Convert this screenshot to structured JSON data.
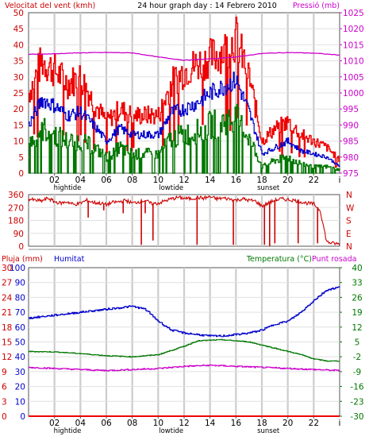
{
  "chart_data": [
    {
      "type": "line",
      "title": "24 hour graph day : 14 Febrero 2010",
      "left_axis_label": "Velocitat del vent (kmh)",
      "right_axis_label": "Pressió (mb)",
      "ylim": [
        0,
        50
      ],
      "yticks": [
        "0",
        "5",
        "10",
        "15",
        "20",
        "25",
        "30",
        "35",
        "40",
        "45",
        "50"
      ],
      "y2lim": [
        975,
        1025
      ],
      "y2ticks": [
        "975",
        "980",
        "985",
        "990",
        "995",
        "1000",
        "1005",
        "1010",
        "1015",
        "1020",
        "1025"
      ],
      "xticks": [
        "02",
        "04",
        "06",
        "08",
        "10",
        "12",
        "14",
        "16",
        "18",
        "20",
        "22"
      ],
      "x_annotations": [
        {
          "x": 3,
          "label": "hightide"
        },
        {
          "x": 11,
          "label": "lowtide"
        },
        {
          "x": 18.5,
          "label": "sunset"
        }
      ],
      "x_end_label": "i",
      "colors": {
        "gust": "#ee0000",
        "average": "#0000cc",
        "wind_low": "#007700",
        "pressure": "#cc00cc"
      },
      "series": [
        {
          "role": "gust",
          "axis": "left",
          "x": [
            0,
            1,
            2,
            3,
            4,
            5,
            6,
            7,
            8,
            9,
            10,
            11,
            12,
            13,
            14,
            15,
            16,
            17,
            18,
            19,
            20,
            21,
            22,
            23,
            24
          ],
          "values": [
            25,
            35,
            32,
            28,
            30,
            22,
            16,
            20,
            18,
            18,
            18,
            28,
            32,
            34,
            36,
            38,
            42,
            30,
            10,
            14,
            16,
            12,
            10,
            8,
            4
          ]
        },
        {
          "role": "average",
          "axis": "left",
          "x": [
            0,
            1,
            2,
            3,
            4,
            5,
            6,
            7,
            8,
            9,
            10,
            11,
            12,
            13,
            14,
            15,
            16,
            17,
            18,
            19,
            20,
            21,
            22,
            23,
            24
          ],
          "values": [
            15,
            23,
            21,
            18,
            19,
            15,
            10,
            14,
            12,
            12,
            12,
            19,
            20,
            22,
            25,
            27,
            29,
            19,
            6,
            8,
            10,
            7,
            6,
            5,
            2
          ]
        },
        {
          "role": "wind_low",
          "axis": "left",
          "x": [
            0,
            1,
            2,
            3,
            4,
            5,
            6,
            7,
            8,
            9,
            10,
            11,
            12,
            13,
            14,
            15,
            16,
            17,
            18,
            19,
            20,
            21,
            22,
            23,
            24
          ],
          "values": [
            9,
            14,
            12,
            10,
            10,
            8,
            5,
            8,
            6,
            6,
            6,
            11,
            12,
            13,
            15,
            16,
            17,
            11,
            2,
            4,
            5,
            3,
            2,
            2,
            1
          ]
        },
        {
          "role": "pressure",
          "axis": "right",
          "x": [
            0,
            2,
            4,
            6,
            8,
            10,
            12,
            14,
            16,
            18,
            20,
            22,
            24
          ],
          "values": [
            1012,
            1012.2,
            1012.5,
            1012.6,
            1012.5,
            1011.2,
            1010.2,
            1010.6,
            1011.2,
            1012.3,
            1012.6,
            1012.4,
            1011.8
          ]
        }
      ]
    },
    {
      "type": "scatter",
      "title": "",
      "ylim": [
        0,
        360
      ],
      "yticks": [
        "0",
        "90",
        "180",
        "270",
        "360"
      ],
      "y2ticks": [
        "N",
        "E",
        "S",
        "W",
        "N"
      ],
      "xticks": [],
      "series": [
        {
          "role": "direction",
          "color": "#cc0000",
          "x": [
            0,
            0.5,
            1,
            1.5,
            2,
            2.5,
            3,
            3.5,
            4,
            4.5,
            5,
            5.5,
            6,
            6.5,
            7,
            7.5,
            8,
            8.5,
            9,
            9.5,
            10,
            10.5,
            11,
            11.5,
            12,
            12.5,
            13,
            13.5,
            14,
            14.5,
            15,
            15.5,
            16,
            16.5,
            17,
            17.5,
            18,
            18.5,
            19,
            19.5,
            20,
            20.5,
            21,
            21.5,
            22,
            22.5,
            23,
            23.5,
            24
          ],
          "values": [
            330,
            320,
            315,
            335,
            310,
            300,
            310,
            290,
            300,
            320,
            305,
            300,
            290,
            305,
            310,
            320,
            300,
            310,
            320,
            295,
            300,
            315,
            330,
            340,
            335,
            330,
            340,
            335,
            345,
            330,
            335,
            330,
            320,
            330,
            320,
            315,
            280,
            300,
            320,
            330,
            325,
            320,
            310,
            300,
            295,
            250,
            30,
            20,
            15
          ]
        }
      ],
      "spikes": [
        {
          "x": 4.6,
          "value": 200
        },
        {
          "x": 5.8,
          "value": 250
        },
        {
          "x": 7.3,
          "value": 230
        },
        {
          "x": 8.7,
          "value": 10
        },
        {
          "x": 9.0,
          "value": 230
        },
        {
          "x": 9.6,
          "value": 40
        },
        {
          "x": 13.0,
          "value": 10
        },
        {
          "x": 15.8,
          "value": 10
        },
        {
          "x": 18.2,
          "value": 10
        },
        {
          "x": 18.6,
          "value": 0
        },
        {
          "x": 19.0,
          "value": 20
        },
        {
          "x": 20.8,
          "value": 20
        },
        {
          "x": 22.3,
          "value": 20
        }
      ]
    },
    {
      "type": "line",
      "title": "",
      "labels": {
        "left_outer": "Pluja (mm)",
        "left_inner": "Humitat",
        "right_inner": "Temperatura (°C)",
        "right_outer": "Punt rosada"
      },
      "rain_ticks": [
        "0",
        "3",
        "6",
        "9",
        "12",
        "15",
        "18",
        "21",
        "24",
        "27",
        "30"
      ],
      "humidity_ticks": [
        "0",
        "10",
        "20",
        "30",
        "40",
        "50",
        "60",
        "70",
        "80",
        "90",
        "100"
      ],
      "temp_ticks": [
        "-30",
        "-23",
        "-16",
        "-9",
        "-2",
        "5",
        "12",
        "19",
        "26",
        "33",
        "40"
      ],
      "ylim_humidity": [
        0,
        100
      ],
      "ylim_temperature": [
        -30,
        40
      ],
      "xticks": [
        "02",
        "04",
        "06",
        "08",
        "10",
        "12",
        "14",
        "16",
        "18",
        "20",
        "22"
      ],
      "x_annotations": [
        {
          "x": 3,
          "label": "hightide"
        },
        {
          "x": 11,
          "label": "lowtide"
        },
        {
          "x": 18.5,
          "label": "sunset"
        }
      ],
      "x_end_label": "i",
      "colors": {
        "humidity": "#0000cc",
        "temperature": "#007700",
        "dew_point": "#cc00cc",
        "rain": "#ee0000"
      },
      "series": [
        {
          "role": "humidity",
          "axis": "humidity",
          "x": [
            0,
            2,
            4,
            6,
            8,
            9,
            10,
            11,
            12,
            13,
            14,
            15,
            16,
            17,
            18,
            19,
            20,
            21,
            22,
            23,
            24
          ],
          "values": [
            66,
            68,
            70,
            72,
            74,
            72,
            64,
            58,
            56,
            55,
            54,
            54,
            55,
            56,
            58,
            62,
            64,
            70,
            78,
            85,
            87
          ]
        },
        {
          "role": "temperature",
          "axis": "temperature",
          "x": [
            0,
            2,
            4,
            6,
            8,
            10,
            11,
            12,
            13,
            14,
            15,
            16,
            17,
            18,
            19,
            20,
            21,
            22,
            23,
            24
          ],
          "values": [
            0.5,
            0.3,
            -0.5,
            -1.5,
            -2,
            -1,
            1,
            3,
            5.5,
            5.8,
            6,
            5.5,
            5,
            3.5,
            2,
            0.5,
            -1,
            -3,
            -4,
            -4
          ]
        },
        {
          "role": "dew_point",
          "axis": "temperature",
          "x": [
            0,
            2,
            4,
            6,
            8,
            10,
            12,
            14,
            16,
            18,
            20,
            22,
            24
          ],
          "values": [
            -7,
            -7.5,
            -8,
            -8.5,
            -8,
            -7.5,
            -6.5,
            -6,
            -6.5,
            -7,
            -7.5,
            -8,
            -8.5
          ]
        },
        {
          "role": "rain",
          "axis": "rain",
          "x": [
            0,
            24
          ],
          "values": [
            0,
            0
          ]
        }
      ]
    }
  ]
}
